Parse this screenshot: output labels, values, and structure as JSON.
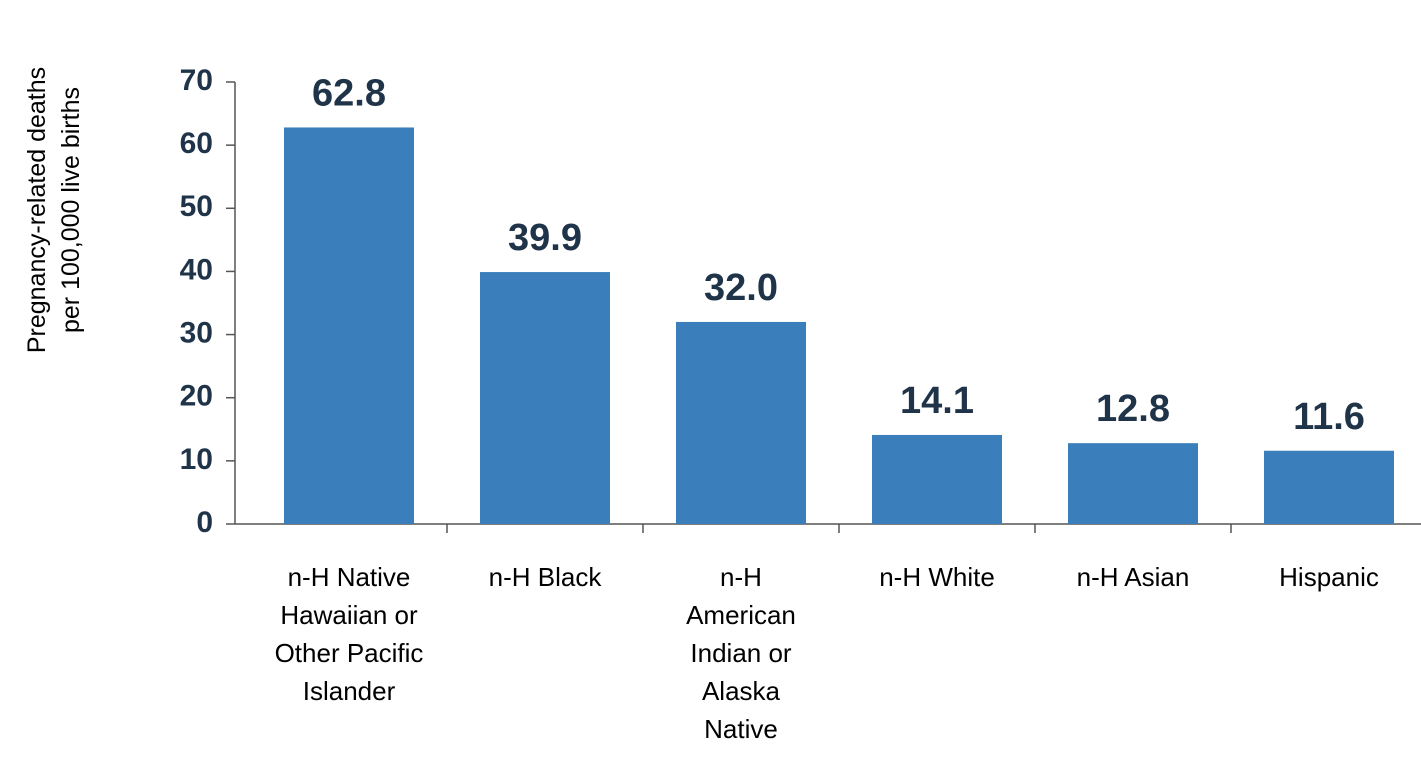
{
  "chart_data": {
    "type": "bar",
    "y_label": "Pregnancy-related deaths\nper 100,000 live births",
    "categories": [
      "n-H Native\nHawaiian or\nOther Pacific\nIslander",
      "n-H Black",
      "n-H\nAmerican\nIndian or\nAlaska\nNative",
      "n-H White",
      "n-H Asian",
      "Hispanic"
    ],
    "values": [
      62.8,
      39.9,
      32.0,
      14.1,
      12.8,
      11.6
    ],
    "value_labels": [
      "62.8",
      "39.9",
      "32.0",
      "14.1",
      "12.8",
      "11.6"
    ],
    "color": "#3a7ebb",
    "ylim": [
      0,
      70
    ],
    "yticks": [
      0,
      10,
      20,
      30,
      40,
      50,
      60,
      70
    ],
    "grid": false
  }
}
